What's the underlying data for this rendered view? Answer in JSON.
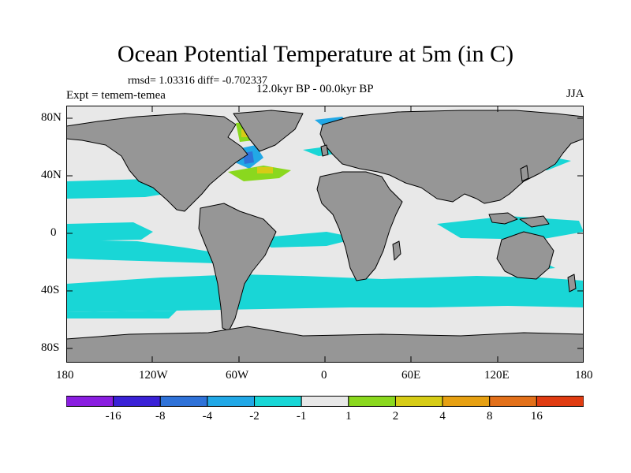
{
  "title": "Ocean Potential Temperature at 5m (in C)",
  "stats": "rmsd= 1.03316 diff= -0.702337",
  "experiment": "Expt = temem-temea",
  "period": "12.0kyr BP - 00.0kyr BP",
  "season": "JJA",
  "axes": {
    "lat_ticks": [
      "80N",
      "40N",
      "0",
      "40S",
      "80S"
    ],
    "lon_ticks": [
      "180",
      "120W",
      "60W",
      "0",
      "60E",
      "120E",
      "180"
    ]
  },
  "colorbar": {
    "labels": [
      "-16",
      "-8",
      "-4",
      "-2",
      "-1",
      "1",
      "2",
      "4",
      "8",
      "16"
    ],
    "colors": [
      "#8a1ee0",
      "#3a22d6",
      "#2f72d8",
      "#22a8e6",
      "#19d6d6",
      "#e8e8e8",
      "#8ad81e",
      "#d6cc16",
      "#e6a012",
      "#e2701a",
      "#e03c12"
    ]
  },
  "colors": {
    "land": "#969696",
    "ocean_neutral": "#e8e8e8",
    "cool_cyan": "#19d6d6",
    "cool_blue": "#22a8e6",
    "deep_blue": "#2f72d8",
    "warm_green": "#8ad81e",
    "warm_yellow": "#d6cc16"
  }
}
